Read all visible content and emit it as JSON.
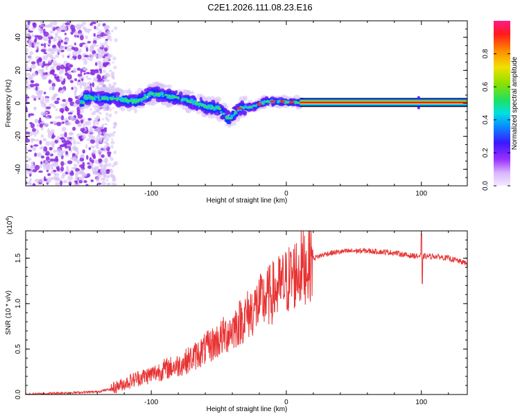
{
  "title": "C2E1.2026.111.08.23.E16",
  "colors": {
    "snr_line": "#e83232",
    "frame": "#000000",
    "spectrogram_purple": "#8a2be2",
    "spectrogram_light": "#d8c4f5"
  },
  "chart_data": [
    {
      "type": "heatmap",
      "name": "spectrogram",
      "xlabel": "Height of straight line (km)",
      "ylabel": "Frequency (Hz)",
      "xlim": [
        -193,
        134
      ],
      "ylim": [
        -50,
        50
      ],
      "xticks": [
        -100,
        0,
        100
      ],
      "xtick_labels": [
        "-100",
        "0",
        "100"
      ],
      "yticks": [
        -40,
        -20,
        0,
        20,
        40
      ],
      "ytick_labels": [
        "-40",
        "-20",
        "0",
        "20",
        "40"
      ],
      "ridge": [
        {
          "x": -150,
          "y": 4
        },
        {
          "x": -140,
          "y": 3
        },
        {
          "x": -130,
          "y": 3
        },
        {
          "x": -120,
          "y": 2
        },
        {
          "x": -110,
          "y": 1
        },
        {
          "x": -100,
          "y": 6
        },
        {
          "x": -90,
          "y": 5
        },
        {
          "x": -80,
          "y": 3
        },
        {
          "x": -70,
          "y": 1
        },
        {
          "x": -60,
          "y": -2
        },
        {
          "x": -50,
          "y": -3
        },
        {
          "x": -42,
          "y": -10
        },
        {
          "x": -35,
          "y": -3
        },
        {
          "x": -25,
          "y": -2
        },
        {
          "x": -15,
          "y": 1
        },
        {
          "x": -5,
          "y": 1
        },
        {
          "x": 10,
          "y": 0.5
        },
        {
          "x": 134,
          "y": 0.5
        }
      ],
      "colorbar": {
        "label": "Normalized spectral amplitude",
        "range": [
          0,
          1
        ],
        "ticks": [
          0.0,
          0.2,
          0.4,
          0.6,
          0.8
        ],
        "tick_labels": [
          "0.0",
          "0.2",
          "0.4",
          "0.6",
          "0.8"
        ]
      }
    },
    {
      "type": "line",
      "name": "snr",
      "xlabel": "Height of straight line (km)",
      "ylabel": "SNR (10 * v/v)",
      "exponent_label": "(x10",
      "exponent_value": "4",
      "exponent_close": ")",
      "xlim": [
        -193,
        134
      ],
      "ylim": [
        0,
        1.8
      ],
      "xticks": [
        -100,
        0,
        100
      ],
      "xtick_labels": [
        "-100",
        "0",
        "100"
      ],
      "yticks": [
        0,
        0.5,
        1.0,
        1.5
      ],
      "ytick_labels": [
        "0.0",
        "0.5",
        "1.0",
        "1.5"
      ],
      "series": [
        {
          "name": "SNR",
          "x": [
            -193,
            -180,
            -160,
            -140,
            -130,
            -120,
            -110,
            -100,
            -90,
            -80,
            -70,
            -60,
            -50,
            -40,
            -30,
            -20,
            -10,
            0,
            10,
            20,
            30,
            40,
            50,
            60,
            70,
            80,
            90,
            100,
            110,
            120,
            134
          ],
          "y": [
            0.0,
            0.01,
            0.02,
            0.03,
            0.06,
            0.12,
            0.18,
            0.22,
            0.28,
            0.32,
            0.4,
            0.5,
            0.6,
            0.72,
            0.86,
            1.0,
            1.12,
            1.24,
            1.38,
            1.5,
            1.55,
            1.57,
            1.58,
            1.58,
            1.57,
            1.56,
            1.53,
            1.52,
            1.52,
            1.5,
            1.44
          ]
        }
      ]
    }
  ]
}
